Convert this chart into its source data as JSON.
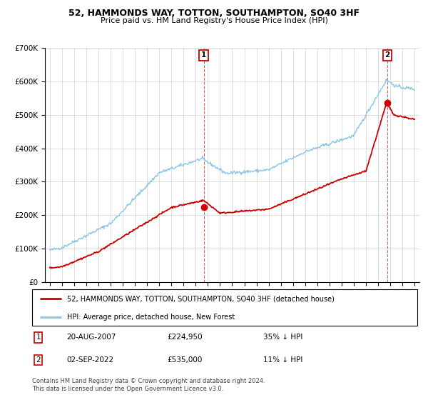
{
  "title": "52, HAMMONDS WAY, TOTTON, SOUTHAMPTON, SO40 3HF",
  "subtitle": "Price paid vs. HM Land Registry's House Price Index (HPI)",
  "background_color": "#ffffff",
  "plot_background": "#ffffff",
  "grid_color": "#cccccc",
  "sale1_date": "20-AUG-2007",
  "sale1_price": 224950,
  "sale2_date": "02-SEP-2022",
  "sale2_price": 535000,
  "sale1_hpi_diff": "35% ↓ HPI",
  "sale2_hpi_diff": "11% ↓ HPI",
  "legend_line1": "52, HAMMONDS WAY, TOTTON, SOUTHAMPTON, SO40 3HF (detached house)",
  "legend_line2": "HPI: Average price, detached house, New Forest",
  "footer": "Contains HM Land Registry data © Crown copyright and database right 2024.\nThis data is licensed under the Open Government Licence v3.0.",
  "hpi_color": "#88c4e8",
  "price_color": "#cc0000",
  "dashed_line_color": "#cc0000",
  "label_box_color": "#cc0000",
  "ylim_min": 0,
  "ylim_max": 700000,
  "yticks": [
    0,
    100000,
    200000,
    300000,
    400000,
    500000,
    600000,
    700000
  ],
  "ytick_labels": [
    "£0",
    "£100K",
    "£200K",
    "£300K",
    "£400K",
    "£500K",
    "£600K",
    "£700K"
  ]
}
